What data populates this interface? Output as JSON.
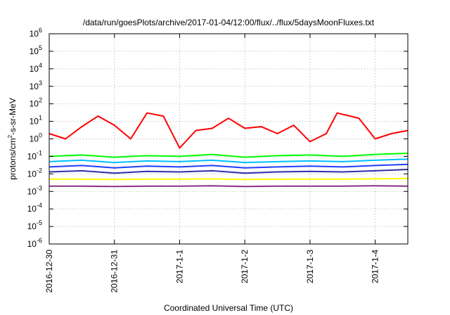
{
  "chart_data": {
    "type": "line",
    "title": "/data/run/goesPlots/archive/2017-01-04/12:00/flux/../flux/5daysMoonFluxes.txt",
    "xlabel": "Coordinated Universal Time (UTC)",
    "ylabel": "protons/cm²-s-sr-MeV",
    "ylabel_parts": {
      "before": "protons/cm",
      "sup": "2",
      "after": "-s-sr-MeV"
    },
    "x_scale": "time",
    "xlim": [
      "2016-12-30T00:00",
      "2017-01-04T12:00"
    ],
    "x_ticks": [
      "2016-12-30",
      "2016-12-31",
      "2017-1-1",
      "2017-1-2",
      "2017-1-3",
      "2017-1-4"
    ],
    "y_scale": "log",
    "ylim": [
      1e-06,
      1000000.0
    ],
    "y_ticks": [
      {
        "base": "10",
        "exp": "-6"
      },
      {
        "base": "10",
        "exp": "-5"
      },
      {
        "base": "10",
        "exp": "-4"
      },
      {
        "base": "10",
        "exp": "-3"
      },
      {
        "base": "10",
        "exp": "-2"
      },
      {
        "base": "10",
        "exp": "-1"
      },
      {
        "base": "10",
        "exp": "0"
      },
      {
        "base": "10",
        "exp": "1"
      },
      {
        "base": "10",
        "exp": "2"
      },
      {
        "base": "10",
        "exp": "3"
      },
      {
        "base": "10",
        "exp": "4"
      },
      {
        "base": "10",
        "exp": "5"
      },
      {
        "base": "10",
        "exp": "6"
      }
    ],
    "grid": true,
    "legend": "none",
    "series": [
      {
        "color": "#ff0000",
        "x": [
          "2016-12-30T00:00",
          "2016-12-30T06:00",
          "2016-12-30T12:00",
          "2016-12-30T18:00",
          "2016-12-31T00:00",
          "2016-12-31T06:00",
          "2016-12-31T12:00",
          "2016-12-31T18:00",
          "2017-01-01T00:00",
          "2017-01-01T06:00",
          "2017-01-01T12:00",
          "2017-01-01T18:00",
          "2017-01-02T00:00",
          "2017-01-02T06:00",
          "2017-01-02T12:00",
          "2017-01-02T18:00",
          "2017-01-03T00:00",
          "2017-01-03T06:00",
          "2017-01-03T10:00",
          "2017-01-03T18:00",
          "2017-01-04T00:00",
          "2017-01-04T06:00",
          "2017-01-04T12:00"
        ],
        "values": [
          2,
          1,
          5,
          20,
          6,
          1,
          30,
          20,
          0.3,
          3,
          4,
          15,
          4,
          5,
          2,
          6,
          0.7,
          2,
          30,
          15,
          1,
          2,
          3
        ]
      },
      {
        "color": "#00ff00",
        "x": [
          "2016-12-30T00:00",
          "2016-12-30T12:00",
          "2016-12-31T00:00",
          "2016-12-31T12:00",
          "2017-01-01T00:00",
          "2017-01-01T12:00",
          "2017-01-02T00:00",
          "2017-01-02T12:00",
          "2017-01-03T00:00",
          "2017-01-03T12:00",
          "2017-01-04T00:00",
          "2017-01-04T12:00"
        ],
        "values": [
          0.1,
          0.12,
          0.09,
          0.11,
          0.1,
          0.13,
          0.09,
          0.11,
          0.12,
          0.1,
          0.13,
          0.15
        ]
      },
      {
        "color": "#00bfff",
        "x": [
          "2016-12-30T00:00",
          "2016-12-30T12:00",
          "2016-12-31T00:00",
          "2016-12-31T12:00",
          "2017-01-01T00:00",
          "2017-01-01T12:00",
          "2017-01-02T00:00",
          "2017-01-02T12:00",
          "2017-01-03T00:00",
          "2017-01-03T12:00",
          "2017-01-04T00:00",
          "2017-01-04T12:00"
        ],
        "values": [
          0.05,
          0.06,
          0.045,
          0.055,
          0.05,
          0.06,
          0.045,
          0.05,
          0.055,
          0.05,
          0.06,
          0.07
        ]
      },
      {
        "color": "#1f3fff",
        "x": [
          "2016-12-30T00:00",
          "2016-12-30T12:00",
          "2016-12-31T00:00",
          "2016-12-31T12:00",
          "2017-01-01T00:00",
          "2017-01-01T12:00",
          "2017-01-02T00:00",
          "2017-01-02T12:00",
          "2017-01-03T00:00",
          "2017-01-03T12:00",
          "2017-01-04T00:00",
          "2017-01-04T12:00"
        ],
        "values": [
          0.025,
          0.03,
          0.022,
          0.028,
          0.025,
          0.03,
          0.022,
          0.025,
          0.028,
          0.025,
          0.03,
          0.035
        ]
      },
      {
        "color": "#2f2fb0",
        "x": [
          "2016-12-30T00:00",
          "2016-12-30T12:00",
          "2016-12-31T00:00",
          "2016-12-31T12:00",
          "2017-01-01T00:00",
          "2017-01-01T12:00",
          "2017-01-02T00:00",
          "2017-01-02T12:00",
          "2017-01-03T00:00",
          "2017-01-03T12:00",
          "2017-01-04T00:00",
          "2017-01-04T12:00"
        ],
        "values": [
          0.013,
          0.015,
          0.011,
          0.014,
          0.013,
          0.015,
          0.011,
          0.013,
          0.014,
          0.013,
          0.015,
          0.018
        ]
      },
      {
        "color": "#ffff00",
        "x": [
          "2016-12-30T00:00",
          "2016-12-30T12:00",
          "2016-12-31T00:00",
          "2016-12-31T12:00",
          "2017-01-01T00:00",
          "2017-01-01T12:00",
          "2017-01-02T00:00",
          "2017-01-02T12:00",
          "2017-01-03T00:00",
          "2017-01-03T12:00",
          "2017-01-04T00:00",
          "2017-01-04T12:00"
        ],
        "values": [
          0.005,
          0.005,
          0.0048,
          0.005,
          0.005,
          0.0052,
          0.0048,
          0.005,
          0.005,
          0.005,
          0.0052,
          0.0055
        ]
      },
      {
        "color": "#8b2f8b",
        "x": [
          "2016-12-30T00:00",
          "2016-12-30T12:00",
          "2016-12-31T00:00",
          "2016-12-31T12:00",
          "2017-01-01T00:00",
          "2017-01-01T12:00",
          "2017-01-02T00:00",
          "2017-01-02T12:00",
          "2017-01-03T00:00",
          "2017-01-03T12:00",
          "2017-01-04T00:00",
          "2017-01-04T12:00"
        ],
        "values": [
          0.002,
          0.002,
          0.0019,
          0.002,
          0.002,
          0.0021,
          0.0019,
          0.002,
          0.002,
          0.002,
          0.0021,
          0.002
        ]
      }
    ]
  }
}
